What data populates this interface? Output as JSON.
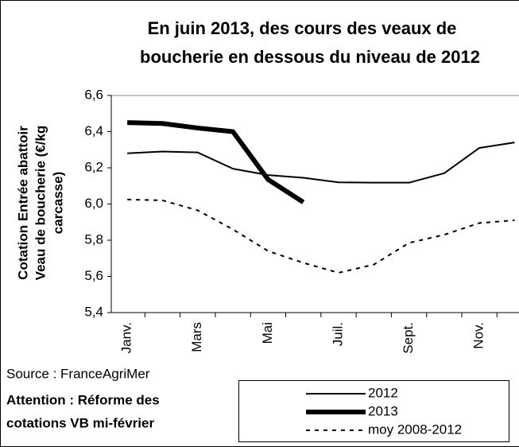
{
  "chart_data": {
    "type": "line",
    "title": [
      "En juin 2013, des cours des veaux de",
      "boucherie en dessous du niveau de 2012"
    ],
    "y_label": [
      "Cotation Entrée abattoir",
      "Veau de boucherie (€/kg",
      "carcasse)"
    ],
    "categories": [
      "Janv.",
      null,
      "Mars",
      null,
      "Mai",
      null,
      "Juil.",
      null,
      "Sept.",
      null,
      "Nov.",
      null
    ],
    "series": [
      {
        "name": "2012",
        "color": "#000000",
        "values": [
          6.28,
          6.29,
          6.285,
          6.195,
          6.16,
          6.145,
          6.12,
          6.118,
          6.118,
          6.17,
          6.31,
          6.34
        ]
      },
      {
        "name": "2013",
        "color": "#000000",
        "values": [
          6.45,
          6.445,
          6.42,
          6.4,
          6.135,
          6.01,
          null,
          null,
          null,
          null,
          null,
          null
        ]
      },
      {
        "name": "moy 2008-2012",
        "color": "#000000",
        "values": [
          6.025,
          6.02,
          5.965,
          5.86,
          5.74,
          5.675,
          5.62,
          5.665,
          5.785,
          5.83,
          5.895,
          5.91
        ]
      }
    ],
    "ylim": [
      5.4,
      6.6
    ],
    "yticks": [
      {
        "value": 5.4,
        "label": "5,4"
      },
      {
        "value": 5.6,
        "label": "5,6"
      },
      {
        "value": 5.8,
        "label": "5,8"
      },
      {
        "value": 6.0,
        "label": "6,0"
      },
      {
        "value": 6.2,
        "label": "6,2"
      },
      {
        "value": 6.4,
        "label": "6,4"
      },
      {
        "value": 6.6,
        "label": "6,6"
      }
    ],
    "source": "Source : FranceAgriMer",
    "note": [
      "Attention : Réforme des",
      "cotations VB mi-février"
    ]
  }
}
